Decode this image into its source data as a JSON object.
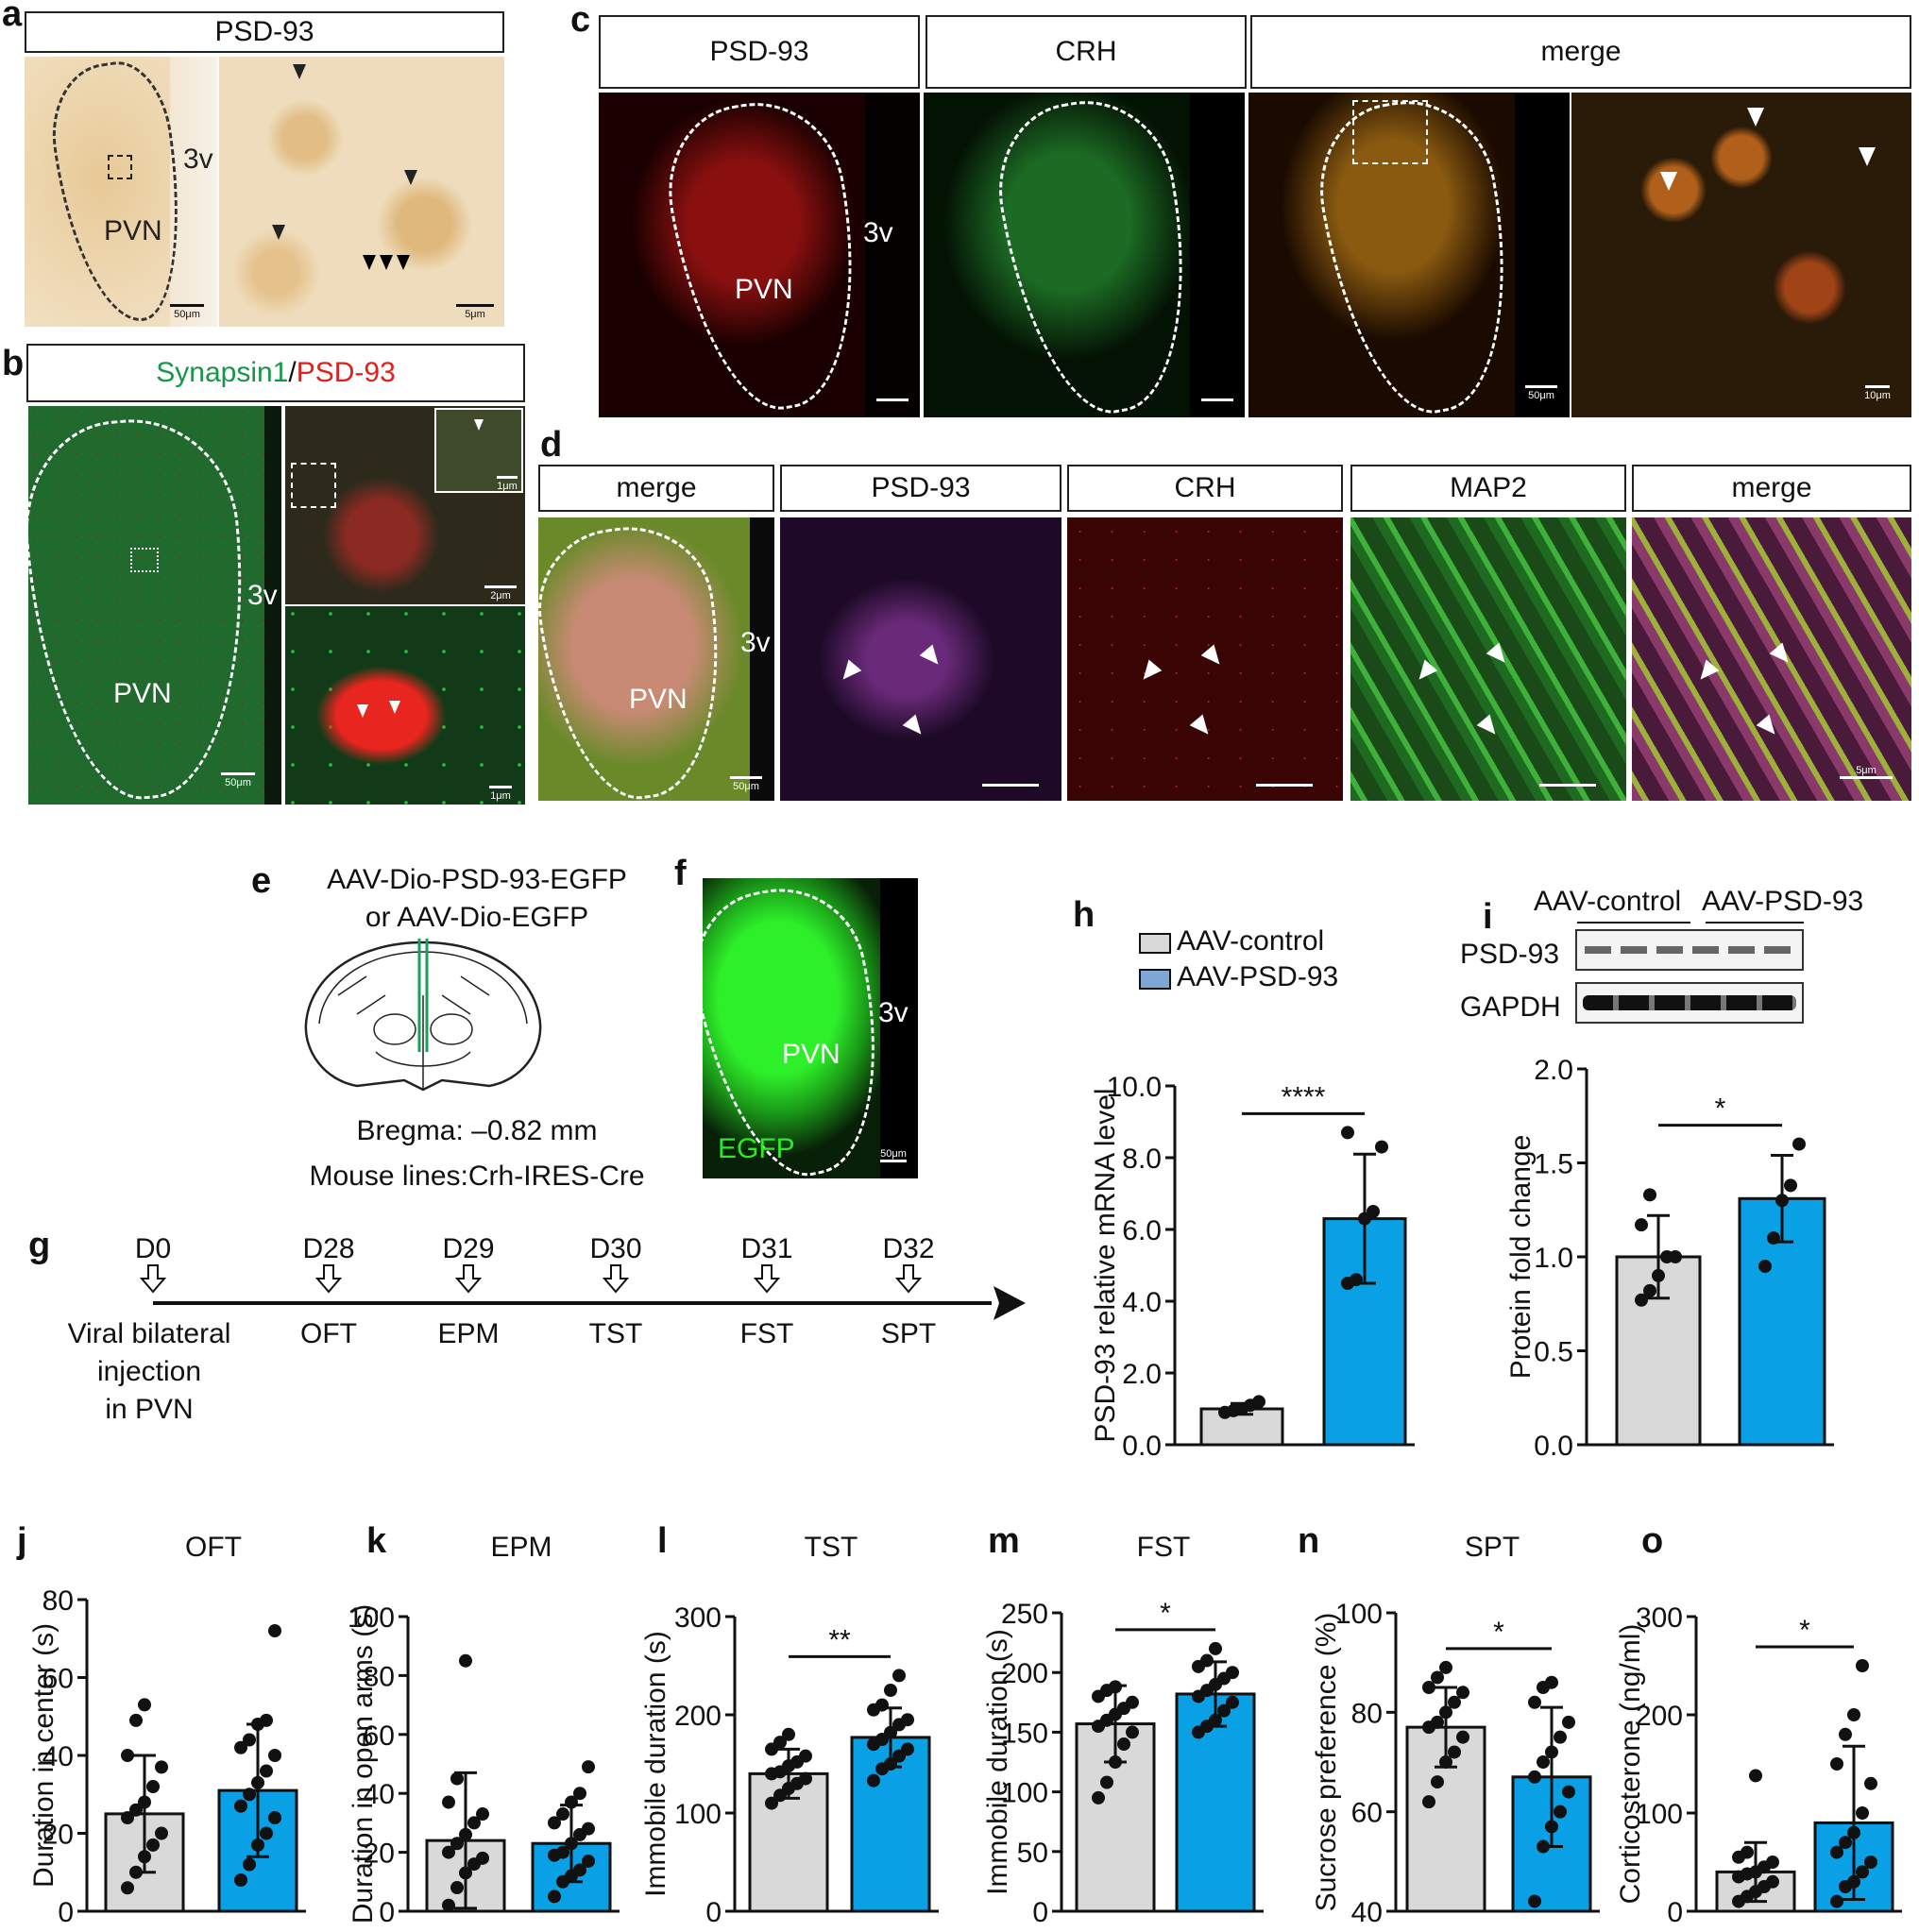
{
  "panels": {
    "a": {
      "letter": "a",
      "header": "PSD-93",
      "region": "PVN",
      "ventricle": "3v",
      "scale_left": "50μm",
      "scale_right": "5μm"
    },
    "b": {
      "letter": "b",
      "header_part1": "Synapsin1",
      "header_sep": "/",
      "header_part2": "PSD-93",
      "region": "PVN",
      "ventricle": "3v",
      "scales": [
        "50μm",
        "2μm",
        "1μm",
        "1μm"
      ]
    },
    "c": {
      "letter": "c",
      "headers": [
        "PSD-93",
        "CRH",
        "merge"
      ],
      "region": "PVN",
      "ventricle": "3v",
      "scales": [
        "50μm",
        "10μm"
      ]
    },
    "d": {
      "letter": "d",
      "headers": [
        "merge",
        "PSD-93",
        "CRH",
        "MAP2",
        "merge"
      ],
      "region": "PVN",
      "ventricle": "3v",
      "scales": [
        "50μm",
        "5μm"
      ]
    },
    "e": {
      "letter": "e",
      "line1": "AAV-Dio-PSD-93-EGFP",
      "line2": "or AAV-Dio-EGFP",
      "bregma": "Bregma: –0.82 mm",
      "mouse": "Mouse lines:Crh-IRES-Cre"
    },
    "f": {
      "letter": "f",
      "ventricle": "3v",
      "region": "PVN",
      "marker": "EGFP",
      "scale": "50μm"
    },
    "g": {
      "letter": "g",
      "timeline": [
        {
          "day": "D0",
          "label_lines": [
            "Viral bilateral",
            "injection",
            "in PVN"
          ]
        },
        {
          "day": "D28",
          "label_lines": [
            "OFT"
          ]
        },
        {
          "day": "D29",
          "label_lines": [
            "EPM"
          ]
        },
        {
          "day": "D30",
          "label_lines": [
            "TST"
          ]
        },
        {
          "day": "D31",
          "label_lines": [
            "FST"
          ]
        },
        {
          "day": "D32",
          "label_lines": [
            "SPT"
          ]
        }
      ]
    },
    "h": {
      "letter": "h",
      "legend": [
        "AAV-control",
        "AAV-PSD-93"
      ]
    },
    "i": {
      "letter": "i",
      "groups": [
        "AAV-control",
        "AAV-PSD-93"
      ],
      "blots": [
        "PSD-93",
        "GAPDH"
      ]
    }
  },
  "colors": {
    "control": "#d9d9d9",
    "psd93": "#0aa0e6",
    "legend_psd93": "#7fa7d6",
    "bar_edge": "#111111",
    "sig": "#111111"
  },
  "chart_data": [
    {
      "id": "h",
      "type": "bar",
      "title": "",
      "ylabel": "PSD-93 relative mRNA level",
      "ylim": [
        0,
        10
      ],
      "yticks": [
        "0.0",
        "2.0",
        "4.0",
        "6.0",
        "8.0",
        "10.0"
      ],
      "categories": [
        "AAV-control",
        "AAV-PSD-93"
      ],
      "values": [
        1.0,
        6.3
      ],
      "errors": [
        0.15,
        1.8
      ],
      "significance": "****",
      "points": [
        [
          0.9,
          0.95,
          1.0,
          1.1,
          1.2
        ],
        [
          4.5,
          4.6,
          6.3,
          6.5,
          8.3,
          8.7
        ]
      ]
    },
    {
      "id": "i",
      "type": "bar",
      "title": "",
      "ylabel": "Protein fold change",
      "ylim": [
        0,
        2
      ],
      "yticks": [
        "0.0",
        "0.5",
        "1.0",
        "1.5",
        "2.0"
      ],
      "categories": [
        "AAV-control",
        "AAV-PSD-93"
      ],
      "values": [
        1.0,
        1.31
      ],
      "errors": [
        0.22,
        0.23
      ],
      "significance": "*",
      "points": [
        [
          0.77,
          0.82,
          0.9,
          1.0,
          1.0,
          1.17,
          1.33
        ],
        [
          0.95,
          1.1,
          1.3,
          1.38,
          1.6
        ]
      ]
    },
    {
      "id": "j",
      "letter": "j",
      "type": "bar",
      "title": "OFT",
      "ylabel": "Duration in center (s)",
      "ylim": [
        0,
        80
      ],
      "yticks": [
        "0",
        "20",
        "40",
        "60",
        "80"
      ],
      "categories": [
        "AAV-control",
        "AAV-PSD-93"
      ],
      "values": [
        25,
        31
      ],
      "errors": [
        15,
        17
      ],
      "significance": "",
      "points": [
        [
          6,
          10,
          14,
          17,
          20,
          24,
          26,
          28,
          32,
          37,
          40,
          49,
          53
        ],
        [
          8,
          12,
          17,
          20,
          24,
          27,
          30,
          33,
          36,
          40,
          42,
          44,
          48,
          49,
          72
        ]
      ]
    },
    {
      "id": "k",
      "letter": "k",
      "type": "bar",
      "title": "EPM",
      "ylabel": "Duration in open arms (s)",
      "ylim": [
        0,
        100
      ],
      "yticks": [
        "0",
        "20",
        "40",
        "60",
        "80",
        "100"
      ],
      "categories": [
        "AAV-control",
        "AAV-PSD-93"
      ],
      "values": [
        24,
        23
      ],
      "errors": [
        23,
        13
      ],
      "significance": "",
      "points": [
        [
          2,
          8,
          13,
          16,
          18,
          20,
          23,
          26,
          30,
          33,
          37,
          45,
          85
        ],
        [
          5,
          10,
          12,
          14,
          17,
          19,
          20,
          23,
          26,
          28,
          30,
          33,
          37,
          40,
          49
        ]
      ]
    },
    {
      "id": "l",
      "letter": "l",
      "type": "bar",
      "title": "TST",
      "ylabel": "Immobile duration (s)",
      "ylim": [
        0,
        300
      ],
      "yticks": [
        "0",
        "100",
        "200",
        "300"
      ],
      "categories": [
        "AAV-control",
        "AAV-PSD-93"
      ],
      "values": [
        140,
        177
      ],
      "errors": [
        25,
        30
      ],
      "significance": "**",
      "points": [
        [
          110,
          118,
          125,
          130,
          135,
          140,
          142,
          148,
          152,
          158,
          165,
          172,
          180
        ],
        [
          133,
          145,
          150,
          158,
          165,
          170,
          175,
          182,
          190,
          195,
          205,
          210,
          225,
          240
        ]
      ]
    },
    {
      "id": "m",
      "letter": "m",
      "type": "bar",
      "title": "FST",
      "ylabel": "Immobile duration (s)",
      "ylim": [
        0,
        250
      ],
      "yticks": [
        "0",
        "50",
        "100",
        "150",
        "200",
        "250"
      ],
      "categories": [
        "AAV-control",
        "AAV-PSD-93"
      ],
      "values": [
        157,
        182
      ],
      "errors": [
        32,
        27
      ],
      "significance": "*",
      "points": [
        [
          95,
          108,
          125,
          140,
          150,
          155,
          160,
          165,
          170,
          175,
          180,
          185,
          188
        ],
        [
          150,
          155,
          160,
          168,
          175,
          180,
          185,
          190,
          195,
          200,
          205,
          210,
          220
        ]
      ]
    },
    {
      "id": "n",
      "letter": "n",
      "type": "bar",
      "title": "SPT",
      "ylabel": "Sucrose preference (%)",
      "ylim": [
        40,
        100
      ],
      "yticks": [
        "40",
        "60",
        "80",
        "100"
      ],
      "categories": [
        "AAV-control",
        "AAV-PSD-93"
      ],
      "values": [
        77,
        67
      ],
      "errors": [
        8,
        14
      ],
      "significance": "*",
      "points": [
        [
          62,
          66,
          70,
          72,
          75,
          77,
          78,
          80,
          82,
          84,
          85,
          87,
          89
        ],
        [
          42,
          53,
          57,
          60,
          64,
          67,
          70,
          72,
          75,
          78,
          82,
          85,
          86
        ]
      ]
    },
    {
      "id": "o",
      "letter": "o",
      "type": "bar",
      "title": "",
      "ylabel": "Corticosterone (ng/ml)",
      "ylim": [
        0,
        300
      ],
      "yticks": [
        "0",
        "100",
        "200",
        "300"
      ],
      "categories": [
        "AAV-control",
        "AAV-PSD-93"
      ],
      "values": [
        40,
        90
      ],
      "errors": [
        30,
        78
      ],
      "significance": "*",
      "points": [
        [
          10,
          15,
          20,
          25,
          30,
          35,
          38,
          40,
          45,
          50,
          55,
          60,
          138
        ],
        [
          10,
          25,
          30,
          40,
          50,
          60,
          70,
          80,
          100,
          130,
          150,
          180,
          200,
          250
        ]
      ]
    }
  ]
}
